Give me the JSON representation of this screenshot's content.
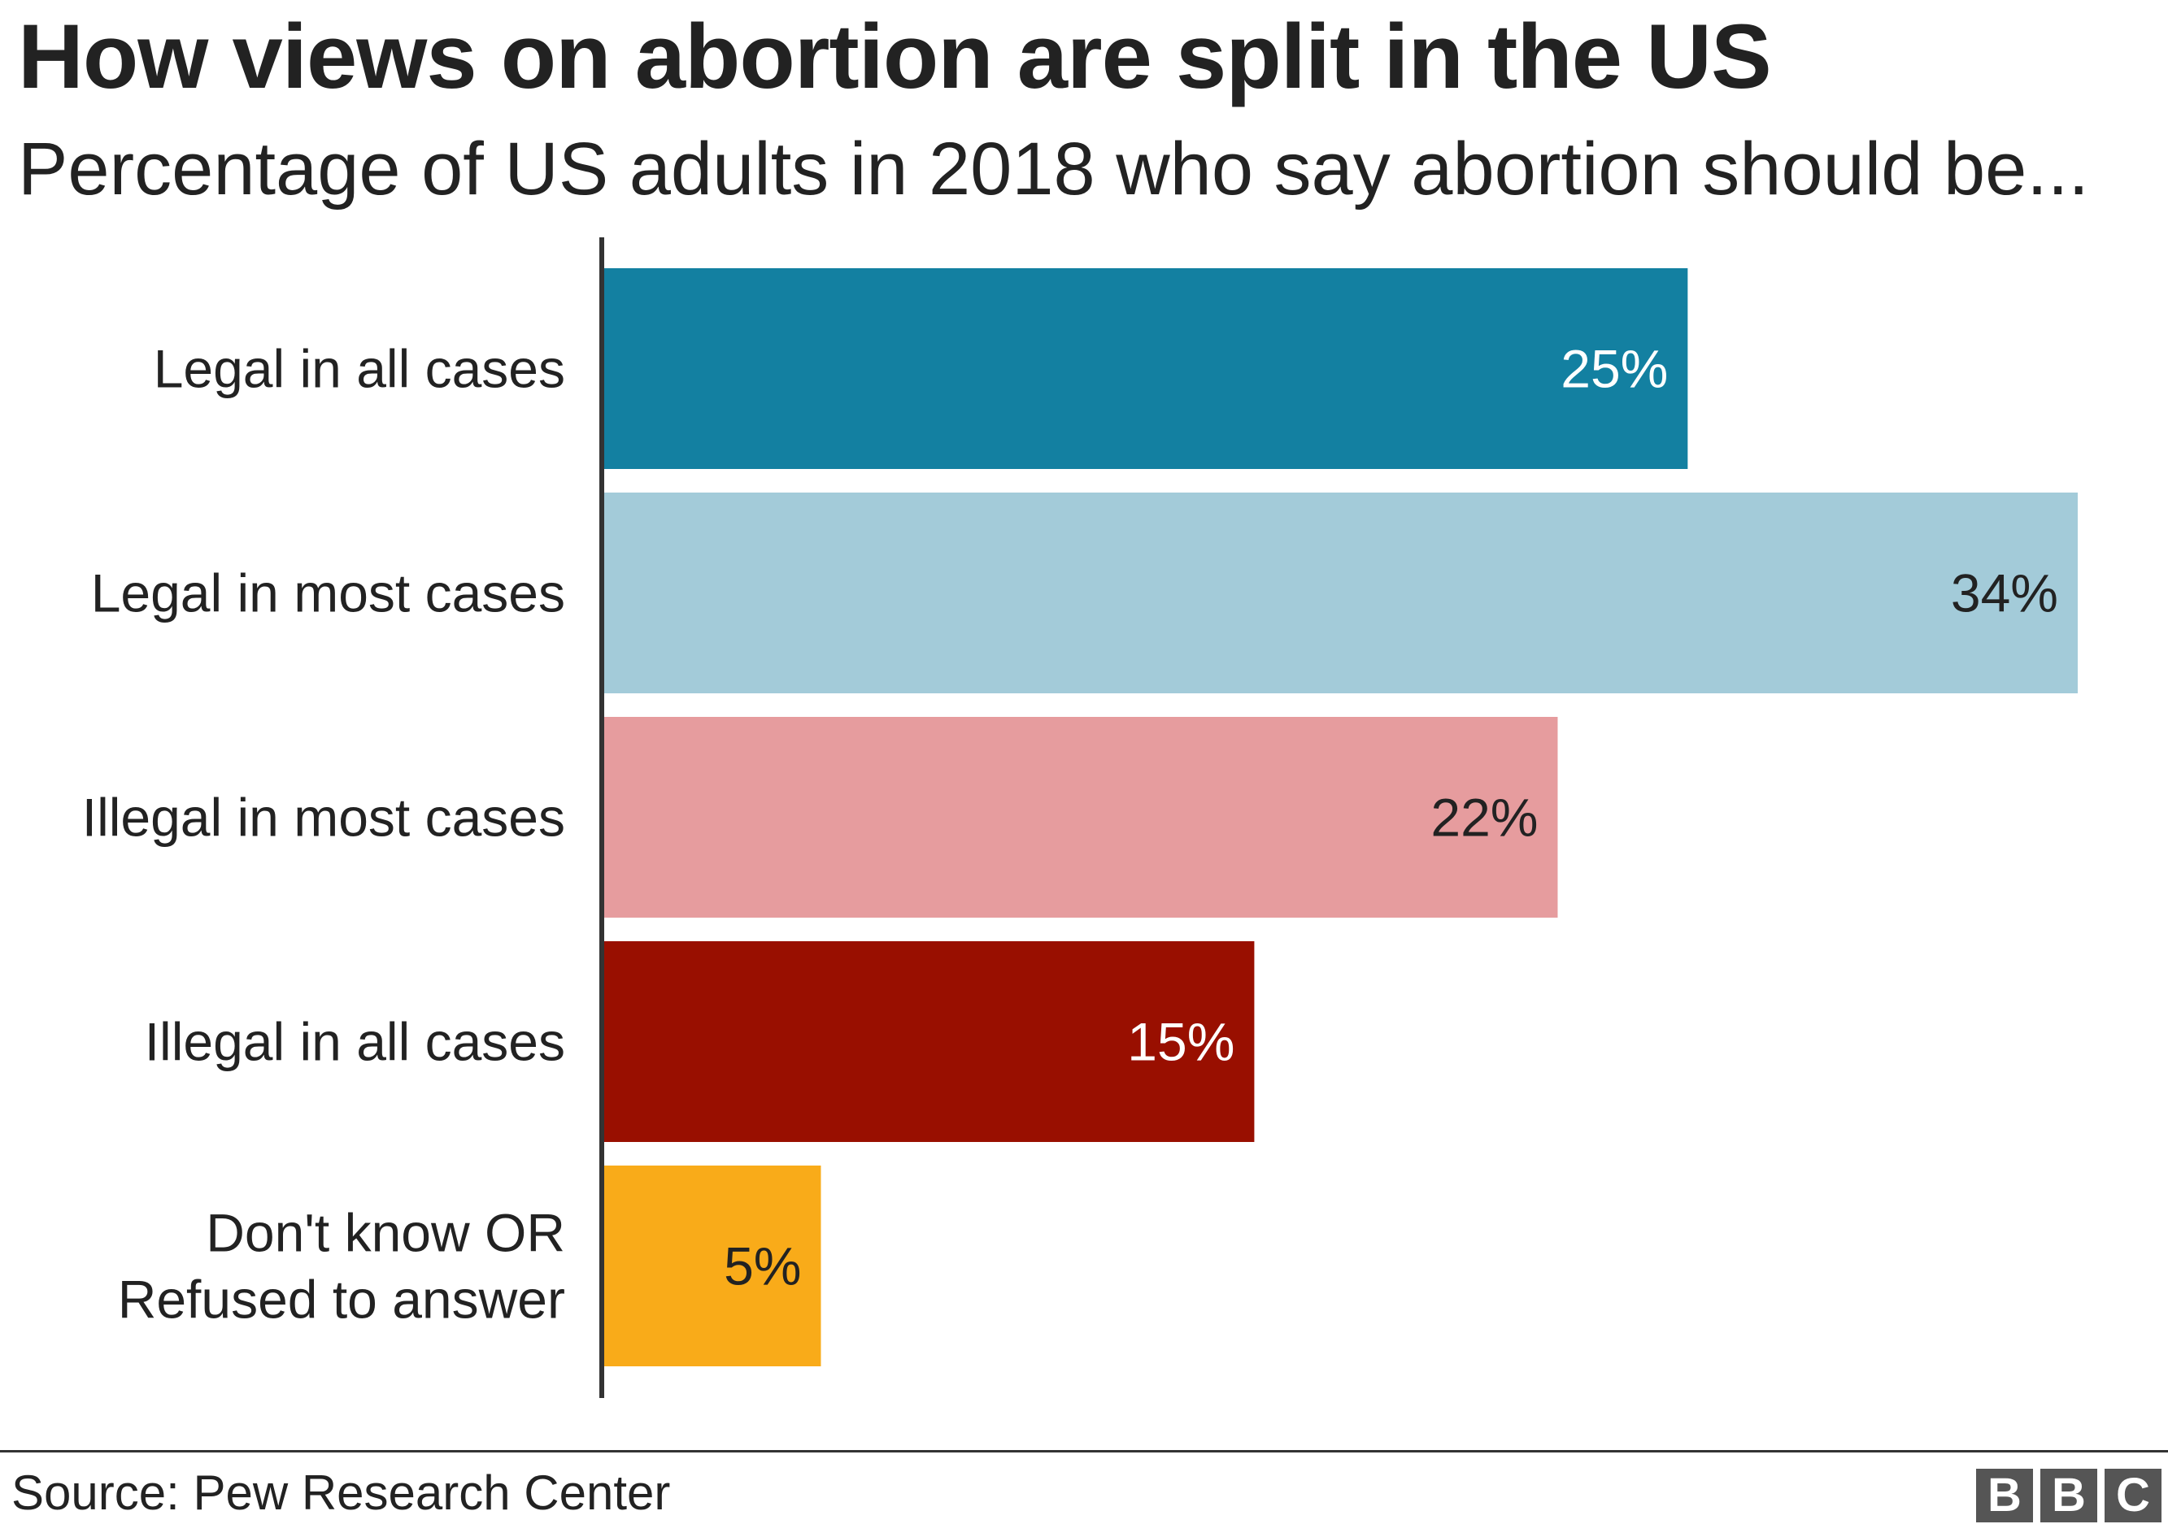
{
  "chart_data": {
    "type": "bar",
    "orientation": "horizontal",
    "title": "How views on abortion are split in the US",
    "subtitle": "Percentage of US adults in 2018 who say abortion should be...",
    "categories": [
      [
        "Legal in all cases"
      ],
      [
        "Legal in most cases"
      ],
      [
        "Illegal in most cases"
      ],
      [
        "Illegal in all cases"
      ],
      [
        "Don't know OR",
        "Refused to answer"
      ]
    ],
    "values": [
      25,
      34,
      22,
      15,
      5
    ],
    "value_labels": [
      "25%",
      "34%",
      "22%",
      "15%",
      "5%"
    ],
    "colors": [
      "#1380a1",
      "#a3cbd9",
      "#e69c9e",
      "#990f00",
      "#f9ab19"
    ],
    "label_colors": [
      "#ffffff",
      "#222222",
      "#222222",
      "#ffffff",
      "#222222"
    ],
    "xlim": [
      0,
      34
    ],
    "xlabel": "",
    "ylabel": "",
    "grid": false,
    "legend": "none"
  },
  "source": "Source: Pew Research Center",
  "logo": [
    "B",
    "B",
    "C"
  ]
}
